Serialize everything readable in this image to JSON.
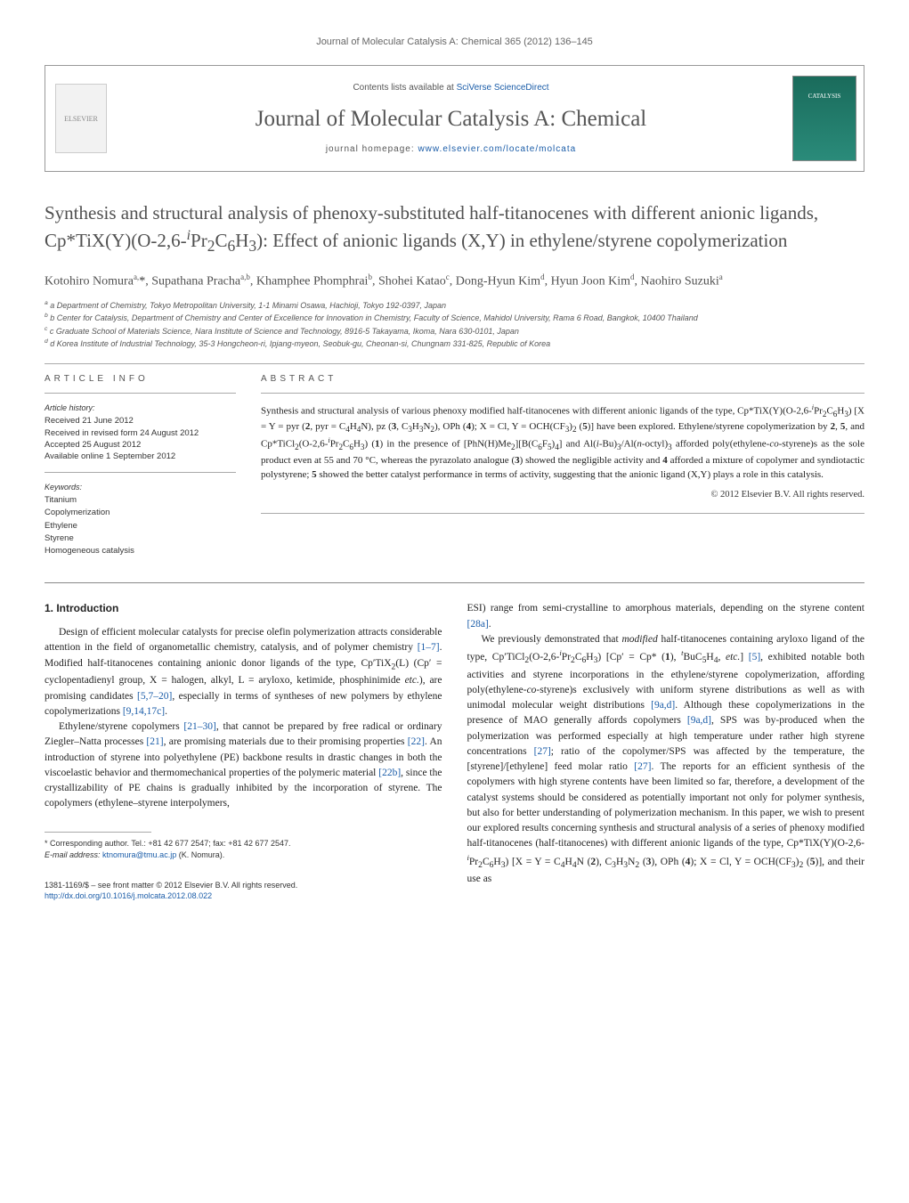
{
  "running_head": "Journal of Molecular Catalysis A: Chemical 365 (2012) 136–145",
  "journal_box": {
    "contents_line": "Contents lists available at ",
    "contents_link": "SciVerse ScienceDirect",
    "journal_title": "Journal of Molecular Catalysis A: Chemical",
    "homepage_label": "journal homepage: ",
    "homepage_url": "www.elsevier.com/locate/molcata",
    "cover_label": "CATALYSIS"
  },
  "article": {
    "title_html": "Synthesis and structural analysis of phenoxy-substituted half-titanocenes with different anionic ligands, Cp*TiX(Y)(O-2,6-<sup><i>i</i></sup>Pr<sub>2</sub>C<sub>6</sub>H<sub>3</sub>): Effect of anionic ligands (X,Y) in ethylene/styrene copolymerization",
    "authors_html": "Kotohiro Nomura<sup>a,</sup><span class='corr'>*</span>, Supathana Pracha<sup>a,b</sup>, Khamphee Phomphrai<sup>b</sup>, Shohei Katao<sup>c</sup>, Dong-Hyun Kim<sup>d</sup>, Hyun Joon Kim<sup>d</sup>, Naohiro Suzuki<sup>a</sup>",
    "affiliations": [
      "a Department of Chemistry, Tokyo Metropolitan University, 1-1 Minami Osawa, Hachioji, Tokyo 192-0397, Japan",
      "b Center for Catalysis, Department of Chemistry and Center of Excellence for Innovation in Chemistry, Faculty of Science, Mahidol University, Rama 6 Road, Bangkok, 10400 Thailand",
      "c Graduate School of Materials Science, Nara Institute of Science and Technology, 8916-5 Takayama, Ikoma, Nara 630-0101, Japan",
      "d Korea Institute of Industrial Technology, 35-3 Hongcheon-ri, Ipjang-myeon, Seobuk-gu, Cheonan-si, Chungnam 331-825, Republic of Korea"
    ]
  },
  "article_info": {
    "header": "ARTICLE INFO",
    "history_label": "Article history:",
    "history": [
      "Received 21 June 2012",
      "Received in revised form 24 August 2012",
      "Accepted 25 August 2012",
      "Available online 1 September 2012"
    ],
    "keywords_label": "Keywords:",
    "keywords": [
      "Titanium",
      "Copolymerization",
      "Ethylene",
      "Styrene",
      "Homogeneous catalysis"
    ]
  },
  "abstract": {
    "header": "ABSTRACT",
    "body_html": "Synthesis and structural analysis of various phenoxy modified half-titanocenes with different anionic ligands of the type, Cp*TiX(Y)(O-2,6-<sup><i>i</i></sup>Pr<sub>2</sub>C<sub>6</sub>H<sub>3</sub>) [X = Y = pyr (<b>2</b>, pyr = C<sub>4</sub>H<sub>4</sub>N), pz (<b>3</b>, C<sub>3</sub>H<sub>3</sub>N<sub>2</sub>), OPh (<b>4</b>); X = Cl, Y = OCH(CF<sub>3</sub>)<sub>2</sub> (<b>5</b>)] have been explored. Ethylene/styrene copolymerization by <b>2</b>, <b>5</b>, and Cp*TiCl<sub>2</sub>(O-2,6-<sup><i>i</i></sup>Pr<sub>2</sub>C<sub>6</sub>H<sub>3</sub>) (<b>1</b>) in the presence of [PhN(H)Me<sub>2</sub>][B(C<sub>6</sub>F<sub>5</sub>)<sub>4</sub>] and Al(<i>i</i>-Bu)<sub>3</sub>/Al(<i>n</i>-octyl)<sub>3</sub> afforded poly(ethylene-<i>co</i>-styrene)s as the sole product even at 55 and 70 °C, whereas the pyrazolato analogue (<b>3</b>) showed the negligible activity and <b>4</b> afforded a mixture of copolymer and syndiotactic polystyrene; <b>5</b> showed the better catalyst performance in terms of activity, suggesting that the anionic ligand (X,Y) plays a role in this catalysis.",
    "copyright": "© 2012 Elsevier B.V. All rights reserved."
  },
  "section1": {
    "heading": "1. Introduction",
    "p1_html": "Design of efficient molecular catalysts for precise olefin polymerization attracts considerable attention in the field of organometallic chemistry, catalysis, and of polymer chemistry <a href='#'>[1–7]</a>. Modified half-titanocenes containing anionic donor ligands of the type, Cp′TiX<sub>2</sub>(L) (Cp′ = cyclopentadienyl group, X = halogen, alkyl, L = aryloxo, ketimide, phosphinimide <i>etc.</i>), are promising candidates <a href='#'>[5,7–20]</a>, especially in terms of syntheses of new polymers by ethylene copolymerizations <a href='#'>[9,14,17c]</a>.",
    "p2_html": "Ethylene/styrene copolymers <a href='#'>[21–30]</a>, that cannot be prepared by free radical or ordinary Ziegler–Natta processes <a href='#'>[21]</a>, are promising materials due to their promising properties <a href='#'>[22]</a>. An introduction of styrene into polyethylene (PE) backbone results in drastic changes in both the viscoelastic behavior and thermomechanical properties of the polymeric material <a href='#'>[22b]</a>, since the crystallizability of PE chains is gradually inhibited by the incorporation of styrene. The copolymers (ethylene–styrene interpolymers,",
    "p3_html": "ESI) range from semi-crystalline to amorphous materials, depending on the styrene content <a href='#'>[28a]</a>.",
    "p4_html": "We previously demonstrated that <i>modified</i> half-titanocenes containing aryloxo ligand of the type, Cp′TiCl<sub>2</sub>(O-2,6-<sup><i>i</i></sup>Pr<sub>2</sub>C<sub>6</sub>H<sub>3</sub>) [Cp′ = Cp* (<b>1</b>), <sup><i>t</i></sup>BuC<sub>5</sub>H<sub>4</sub>, <i>etc.</i>] <a href='#'>[5]</a>, exhibited notable both activities and styrene incorporations in the ethylene/styrene copolymerization, affording poly(ethylene-<i>co</i>-styrene)s exclusively with uniform styrene distributions as well as with unimodal molecular weight distributions <a href='#'>[9a,d]</a>. Although these copolymerizations in the presence of MAO generally affords copolymers <a href='#'>[9a,d]</a>, SPS was by-produced when the polymerization was performed especially at high temperature under rather high styrene concentrations <a href='#'>[27]</a>; ratio of the copolymer/SPS was affected by the temperature, the [styrene]/[ethylene] feed molar ratio <a href='#'>[27]</a>. The reports for an efficient synthesis of the copolymers with high styrene contents have been limited so far, therefore, a development of the catalyst systems should be considered as potentially important not only for polymer synthesis, but also for better understanding of polymerization mechanism. In this paper, we wish to present our explored results concerning synthesis and structural analysis of a series of phenoxy modified half-titanocenes (half-titanocenes) with different anionic ligands of the type, Cp*TiX(Y)(O-2,6-<sup><i>i</i></sup>Pr<sub>2</sub>C<sub>6</sub>H<sub>3</sub>) [X = Y = C<sub>4</sub>H<sub>4</sub>N (<b>2</b>), C<sub>3</sub>H<sub>3</sub>N<sub>2</sub> (<b>3</b>), OPh (<b>4</b>); X = Cl, Y = OCH(CF<sub>3</sub>)<sub>2</sub> (<b>5</b>)], and their use as"
  },
  "footnote": {
    "corr_text": "* Corresponding author. Tel.: +81 42 677 2547; fax: +81 42 677 2547.",
    "email_label": "E-mail address: ",
    "email": "ktnomura@tmu.ac.jp",
    "email_author": " (K. Nomura)."
  },
  "footer": {
    "issn": "1381-1169/$ – see front matter © 2012 Elsevier B.V. All rights reserved.",
    "doi_label": "http://dx.doi.org/",
    "doi": "10.1016/j.molcata.2012.08.022"
  },
  "colors": {
    "link": "#1a5ca8",
    "heading": "#505050",
    "text": "#222222",
    "rule": "#aaaaaa",
    "cover_bg": "#1a6b5b"
  },
  "typography": {
    "body_family": "Georgia, serif",
    "sans_family": "Arial, sans-serif",
    "title_size_pt": 21,
    "journal_title_size_pt": 25,
    "body_size_pt": 11.5,
    "small_size_pt": 9
  }
}
